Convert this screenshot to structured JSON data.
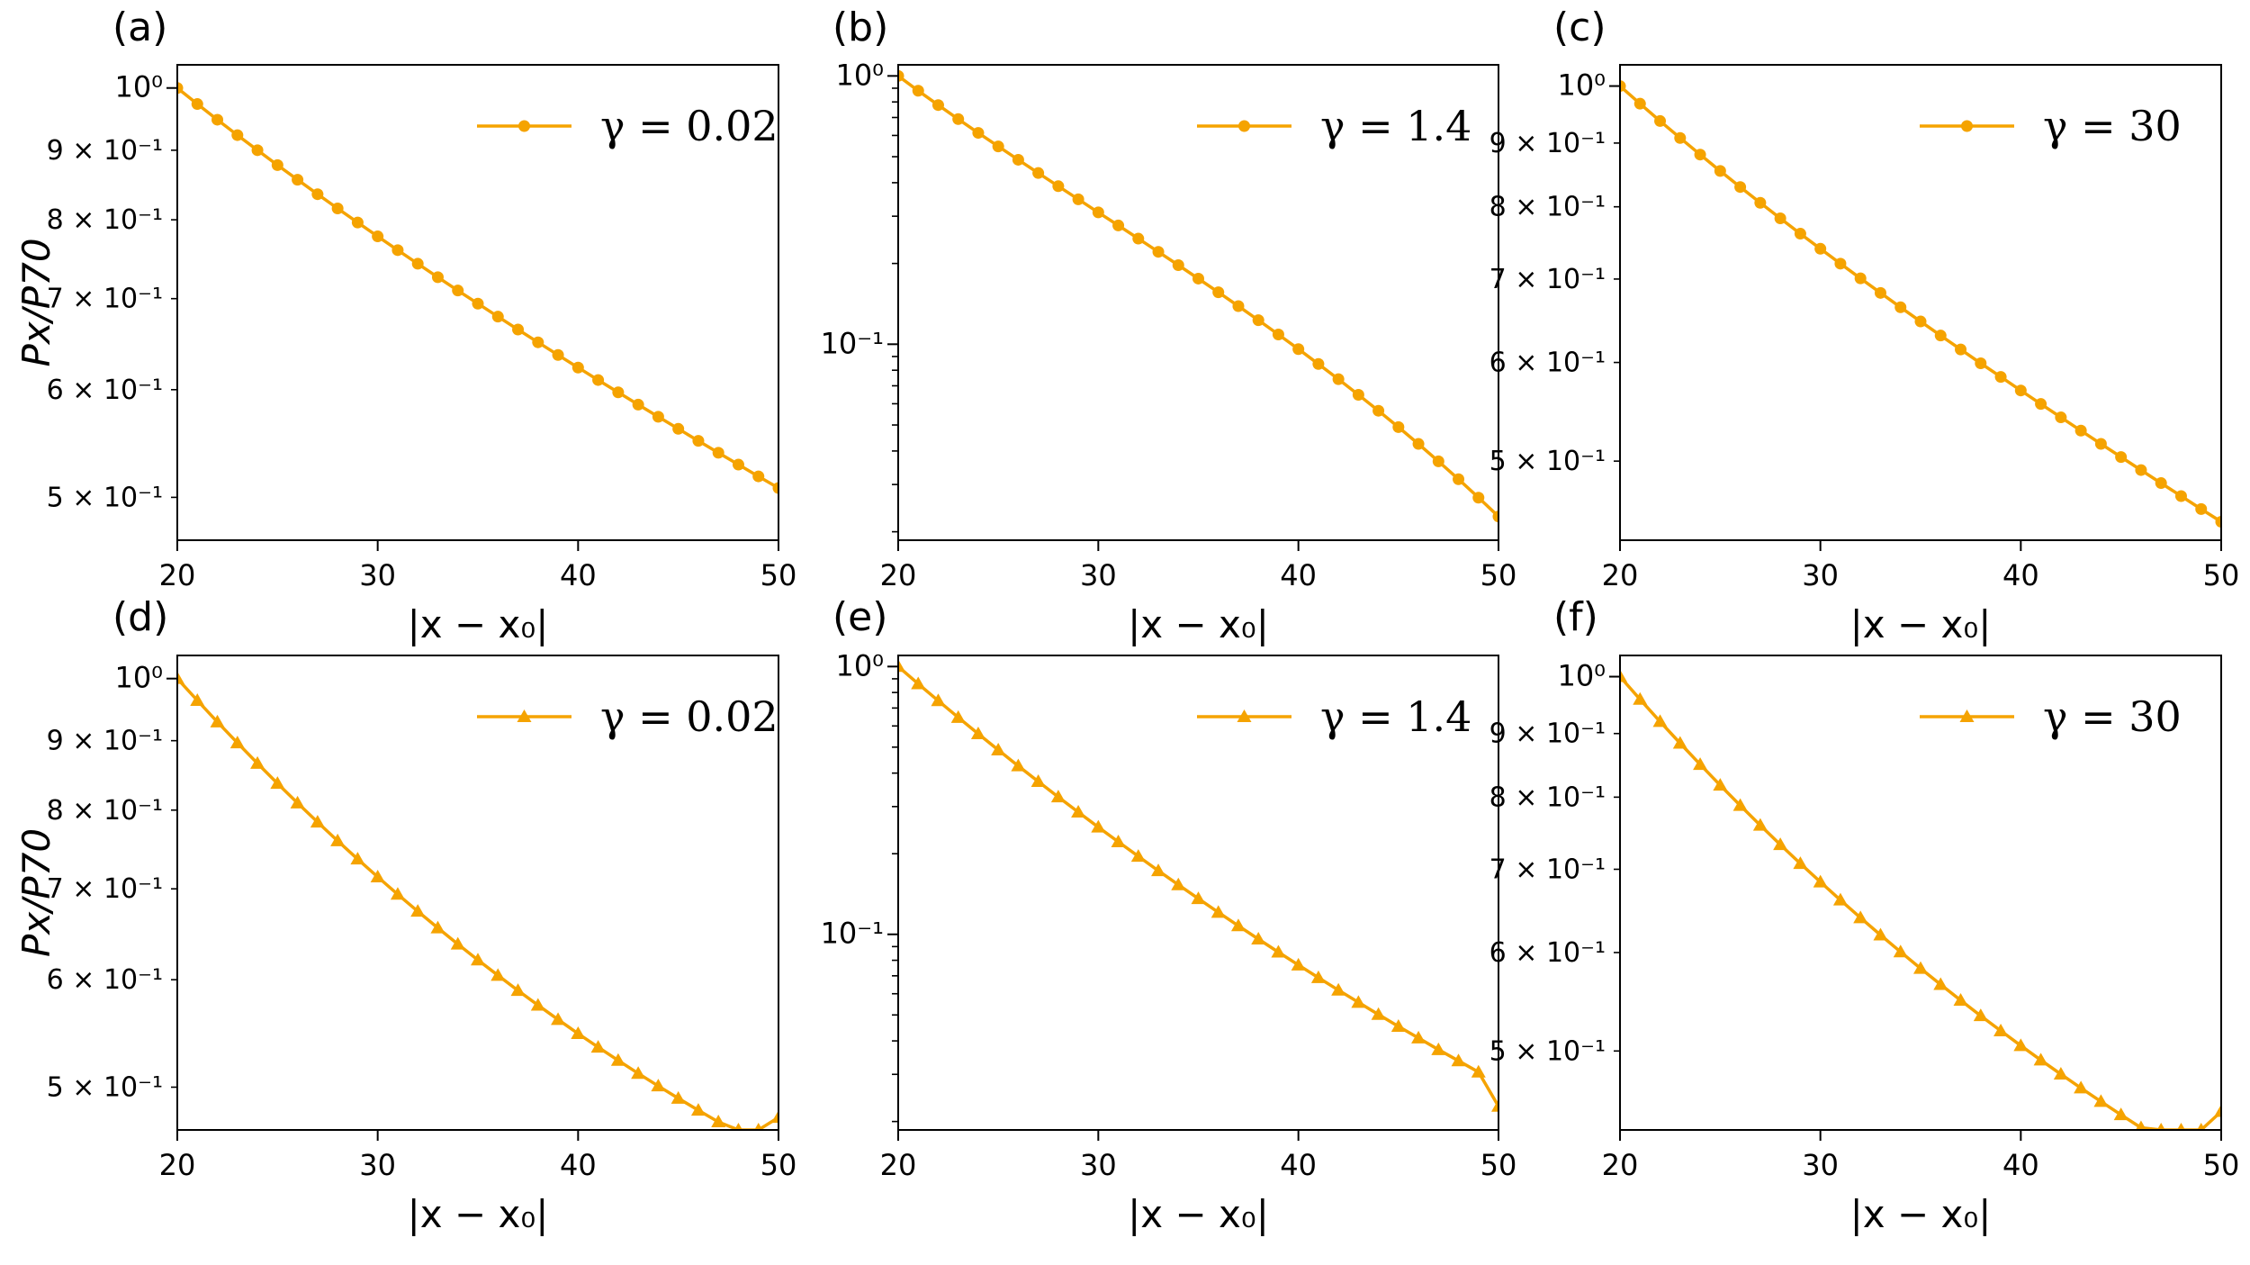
{
  "figure": {
    "series_color": "#F5A300",
    "panel_letters": [
      "(a)",
      "(b)",
      "(c)",
      "(d)",
      "(e)",
      "(f)"
    ]
  },
  "chart_data": [
    {
      "type": "line",
      "panel": "(a)",
      "marker": "circle",
      "legend": "γ = 0.02",
      "xlabel": "|x − x₀|",
      "ylabel": "Px/P70",
      "yscale": "log",
      "xlim": [
        20,
        50
      ],
      "ylim": [
        0.465,
        1.04
      ],
      "xticks": [
        20,
        30,
        40,
        50
      ],
      "yticks": [
        {
          "v": 1.0,
          "label": "10⁰"
        },
        {
          "v": 0.9,
          "label": "9 × 10⁻¹"
        },
        {
          "v": 0.8,
          "label": "8 × 10⁻¹"
        },
        {
          "v": 0.7,
          "label": "7 × 10⁻¹"
        },
        {
          "v": 0.6,
          "label": "6 × 10⁻¹"
        },
        {
          "v": 0.5,
          "label": "5 × 10⁻¹"
        }
      ],
      "x": [
        20,
        21,
        22,
        23,
        24,
        25,
        26,
        27,
        28,
        29,
        30,
        31,
        32,
        33,
        34,
        35,
        36,
        37,
        38,
        39,
        40,
        41,
        42,
        43,
        44,
        45,
        46,
        47,
        48,
        49,
        50
      ],
      "y": [
        1.0,
        0.9732,
        0.9477,
        0.9233,
        0.9,
        0.8776,
        0.8561,
        0.8354,
        0.8155,
        0.7963,
        0.7778,
        0.7599,
        0.7426,
        0.7259,
        0.7097,
        0.6941,
        0.679,
        0.6643,
        0.6501,
        0.6363,
        0.6229,
        0.6099,
        0.5973,
        0.585,
        0.5731,
        0.5615,
        0.5502,
        0.5392,
        0.5285,
        0.5181,
        0.508
      ]
    },
    {
      "type": "line",
      "panel": "(b)",
      "marker": "circle",
      "legend": "γ = 1.4",
      "xlabel": "|x − x₀|",
      "ylabel": "",
      "yscale": "log",
      "xlim": [
        20,
        50
      ],
      "ylim": [
        0.0186,
        1.1
      ],
      "xticks": [
        20,
        30,
        40,
        50
      ],
      "yticks": [
        {
          "v": 1.0,
          "label": "10⁰"
        },
        {
          "v": 0.1,
          "label": "10⁻¹"
        }
      ],
      "x": [
        20,
        21,
        22,
        23,
        24,
        25,
        26,
        27,
        28,
        29,
        30,
        31,
        32,
        33,
        34,
        35,
        36,
        37,
        38,
        39,
        40,
        41,
        42,
        43,
        44,
        45,
        46,
        47,
        48,
        49,
        50
      ],
      "y": [
        1.0,
        0.8808,
        0.7787,
        0.6904,
        0.6135,
        0.5462,
        0.487,
        0.4346,
        0.3882,
        0.3469,
        0.3101,
        0.2771,
        0.2475,
        0.221,
        0.1971,
        0.1756,
        0.1562,
        0.1387,
        0.1229,
        0.1087,
        0.0959,
        0.0844,
        0.0741,
        0.0648,
        0.0565,
        0.0491,
        0.0425,
        0.0366,
        0.0314,
        0.0268,
        0.0228
      ]
    },
    {
      "type": "line",
      "panel": "(c)",
      "marker": "circle",
      "legend": "γ = 30",
      "xlabel": "|x − x₀|",
      "ylabel": "",
      "yscale": "log",
      "xlim": [
        20,
        50
      ],
      "ylim": [
        0.432,
        1.04
      ],
      "xticks": [
        20,
        30,
        40,
        50
      ],
      "yticks": [
        {
          "v": 1.0,
          "label": "10⁰"
        },
        {
          "v": 0.9,
          "label": "9 × 10⁻¹"
        },
        {
          "v": 0.8,
          "label": "8 × 10⁻¹"
        },
        {
          "v": 0.7,
          "label": "7 × 10⁻¹"
        },
        {
          "v": 0.6,
          "label": "6 × 10⁻¹"
        },
        {
          "v": 0.5,
          "label": "5 × 10⁻¹"
        }
      ],
      "x": [
        20,
        21,
        22,
        23,
        24,
        25,
        26,
        27,
        28,
        29,
        30,
        31,
        32,
        33,
        34,
        35,
        36,
        37,
        38,
        39,
        40,
        41,
        42,
        43,
        44,
        45,
        46,
        47,
        48,
        49,
        50
      ],
      "y": [
        1.0,
        0.9679,
        0.9374,
        0.9085,
        0.881,
        0.8548,
        0.8298,
        0.8059,
        0.7831,
        0.7612,
        0.7403,
        0.7202,
        0.7009,
        0.6823,
        0.6644,
        0.6472,
        0.6306,
        0.6146,
        0.5991,
        0.5842,
        0.5697,
        0.5557,
        0.5421,
        0.529,
        0.5162,
        0.5038,
        0.4918,
        0.4801,
        0.4687,
        0.4576,
        0.447
      ]
    },
    {
      "type": "line",
      "panel": "(d)",
      "marker": "triangle",
      "legend": "γ = 0.02",
      "xlabel": "|x − x₀|",
      "ylabel": "Px/P70",
      "yscale": "log",
      "xlim": [
        20,
        50
      ],
      "ylim": [
        0.465,
        1.04
      ],
      "xticks": [
        20,
        30,
        40,
        50
      ],
      "yticks": [
        {
          "v": 1.0,
          "label": "10⁰"
        },
        {
          "v": 0.9,
          "label": "9 × 10⁻¹"
        },
        {
          "v": 0.8,
          "label": "8 × 10⁻¹"
        },
        {
          "v": 0.7,
          "label": "7 × 10⁻¹"
        },
        {
          "v": 0.6,
          "label": "6 × 10⁻¹"
        },
        {
          "v": 0.5,
          "label": "5 × 10⁻¹"
        }
      ],
      "x": [
        20,
        21,
        22,
        23,
        24,
        25,
        26,
        27,
        28,
        29,
        30,
        31,
        32,
        33,
        34,
        35,
        36,
        37,
        38,
        39,
        40,
        41,
        42,
        43,
        44,
        45,
        46,
        47,
        48,
        49,
        50
      ],
      "y": [
        1.0,
        0.9635,
        0.9291,
        0.8966,
        0.866,
        0.8371,
        0.8097,
        0.7839,
        0.7594,
        0.7362,
        0.7143,
        0.6935,
        0.6738,
        0.6551,
        0.6373,
        0.6204,
        0.6044,
        0.5891,
        0.5746,
        0.5608,
        0.5476,
        0.5351,
        0.5232,
        0.5118,
        0.501,
        0.4906,
        0.4808,
        0.4714,
        0.4624,
        0.4538,
        0.475
      ]
    },
    {
      "type": "line",
      "panel": "(e)",
      "marker": "triangle",
      "legend": "γ = 1.4",
      "xlabel": "|x − x₀|",
      "ylabel": "",
      "yscale": "log",
      "xlim": [
        20,
        50
      ],
      "ylim": [
        0.0186,
        1.1
      ],
      "xticks": [
        20,
        30,
        40,
        50
      ],
      "yticks": [
        {
          "v": 1.0,
          "label": "10⁰"
        },
        {
          "v": 0.1,
          "label": "10⁻¹"
        }
      ],
      "x": [
        20,
        21,
        22,
        23,
        24,
        25,
        26,
        27,
        28,
        29,
        30,
        31,
        32,
        33,
        34,
        35,
        36,
        37,
        38,
        39,
        40,
        41,
        42,
        43,
        44,
        45,
        46,
        47,
        48,
        49,
        50
      ],
      "y": [
        1.0,
        0.8622,
        0.7452,
        0.6456,
        0.5607,
        0.488,
        0.4256,
        0.372,
        0.3258,
        0.2859,
        0.2514,
        0.2215,
        0.1955,
        0.1728,
        0.1531,
        0.1359,
        0.1208,
        0.1076,
        0.096,
        0.0858,
        0.0768,
        0.0689,
        0.0619,
        0.0557,
        0.0502,
        0.0453,
        0.041,
        0.0371,
        0.0337,
        0.0306,
        0.0228
      ]
    },
    {
      "type": "line",
      "panel": "(f)",
      "marker": "triangle",
      "legend": "γ = 30",
      "xlabel": "|x − x₀|",
      "ylabel": "",
      "yscale": "log",
      "xlim": [
        20,
        50
      ],
      "ylim": [
        0.432,
        1.04
      ],
      "xticks": [
        20,
        30,
        40,
        50
      ],
      "yticks": [
        {
          "v": 1.0,
          "label": "10⁰"
        },
        {
          "v": 0.9,
          "label": "9 × 10⁻¹"
        },
        {
          "v": 0.8,
          "label": "8 × 10⁻¹"
        },
        {
          "v": 0.7,
          "label": "7 × 10⁻¹"
        },
        {
          "v": 0.6,
          "label": "6 × 10⁻¹"
        },
        {
          "v": 0.5,
          "label": "5 × 10⁻¹"
        }
      ],
      "x": [
        20,
        21,
        22,
        23,
        24,
        25,
        26,
        27,
        28,
        29,
        30,
        31,
        32,
        33,
        34,
        35,
        36,
        37,
        38,
        39,
        40,
        41,
        42,
        43,
        44,
        45,
        46,
        47,
        48,
        49,
        50
      ],
      "y": [
        1.0,
        0.9588,
        0.9202,
        0.884,
        0.8499,
        0.8179,
        0.7878,
        0.7594,
        0.7327,
        0.7075,
        0.6837,
        0.6612,
        0.6399,
        0.6198,
        0.6007,
        0.5826,
        0.5655,
        0.5492,
        0.5337,
        0.519,
        0.505,
        0.4917,
        0.479,
        0.4669,
        0.4554,
        0.4443,
        0.4338,
        0.4237,
        0.4141,
        0.4049,
        0.447
      ]
    }
  ]
}
